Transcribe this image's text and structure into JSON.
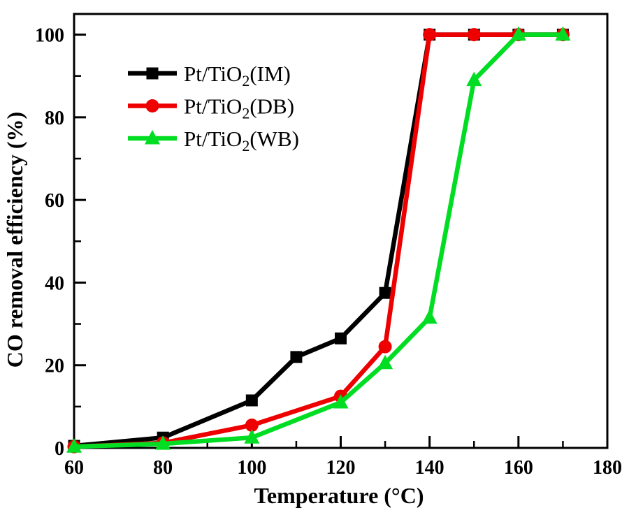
{
  "chart_data": {
    "type": "line",
    "title": "",
    "xlabel": "Temperature (°C)",
    "ylabel": "CO removal efficiency (%)",
    "xlim": [
      60,
      180
    ],
    "ylim": [
      0,
      105
    ],
    "x_major_ticks": [
      60,
      80,
      100,
      120,
      140,
      160,
      180
    ],
    "x_minor_ticks": [
      70,
      90,
      110,
      130,
      150,
      170
    ],
    "y_major_ticks": [
      0,
      20,
      40,
      60,
      80,
      100
    ],
    "y_minor_ticks": [
      10,
      30,
      50,
      70,
      90
    ],
    "grid": false,
    "legend_position": "upper-left-inside",
    "axis_color": "#000000",
    "background": "#ffffff",
    "series": [
      {
        "name": "Pt/TiO2(IM)",
        "label_parts": {
          "prefix": "Pt/TiO",
          "sub": "2",
          "suffix": "(IM)"
        },
        "color": "#000000",
        "marker": "square",
        "x": [
          60,
          80,
          100,
          110,
          120,
          130,
          140,
          150,
          160,
          170
        ],
        "y": [
          0.5,
          2.5,
          11.5,
          22,
          26.5,
          37.5,
          100,
          100,
          100,
          100
        ]
      },
      {
        "name": "Pt/TiO2(DB)",
        "label_parts": {
          "prefix": "Pt/TiO",
          "sub": "2",
          "suffix": "(DB)"
        },
        "color": "#ee0000",
        "marker": "circle",
        "x": [
          60,
          80,
          100,
          120,
          130,
          140,
          150,
          160,
          170
        ],
        "y": [
          0.3,
          1.2,
          5.5,
          12.5,
          24.5,
          100,
          100,
          100,
          100
        ]
      },
      {
        "name": "Pt/TiO2(WB)",
        "label_parts": {
          "prefix": "Pt/TiO",
          "sub": "2",
          "suffix": "(WB)"
        },
        "color": "#00dd22",
        "marker": "triangle",
        "x": [
          60,
          80,
          100,
          120,
          130,
          140,
          150,
          160,
          170
        ],
        "y": [
          0.3,
          1.0,
          2.5,
          11,
          20.5,
          31.5,
          89,
          100,
          100
        ]
      }
    ]
  }
}
